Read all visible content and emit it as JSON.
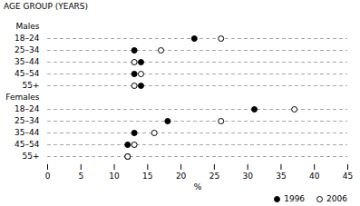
{
  "chart_data": {
    "type": "dot",
    "title": "AGE GROUP (YEARS)",
    "xlabel": "%",
    "categories": [
      "18–24",
      "25–34",
      "35–44",
      "45–54",
      "55+",
      "18–24",
      "25–34",
      "35–44",
      "45–54",
      "55+"
    ],
    "groups": [
      "Males",
      "Males",
      "Males",
      "Males",
      "Males",
      "Females",
      "Females",
      "Females",
      "Females",
      "Females"
    ],
    "series": [
      {
        "name": "1996",
        "color": "#000000",
        "marker": "filled",
        "values": [
          22,
          13,
          14,
          13,
          14,
          31,
          18,
          13,
          12,
          12
        ]
      },
      {
        "name": "2006",
        "color": "#000000",
        "marker": "open",
        "values": [
          26,
          17,
          13,
          14,
          13,
          37,
          26,
          16,
          13,
          12
        ]
      }
    ],
    "xlim": [
      0,
      45
    ],
    "xticks": [
      0,
      5,
      10,
      15,
      20,
      25,
      30,
      35,
      40,
      45
    ],
    "grid": true,
    "legend": "lower right"
  }
}
